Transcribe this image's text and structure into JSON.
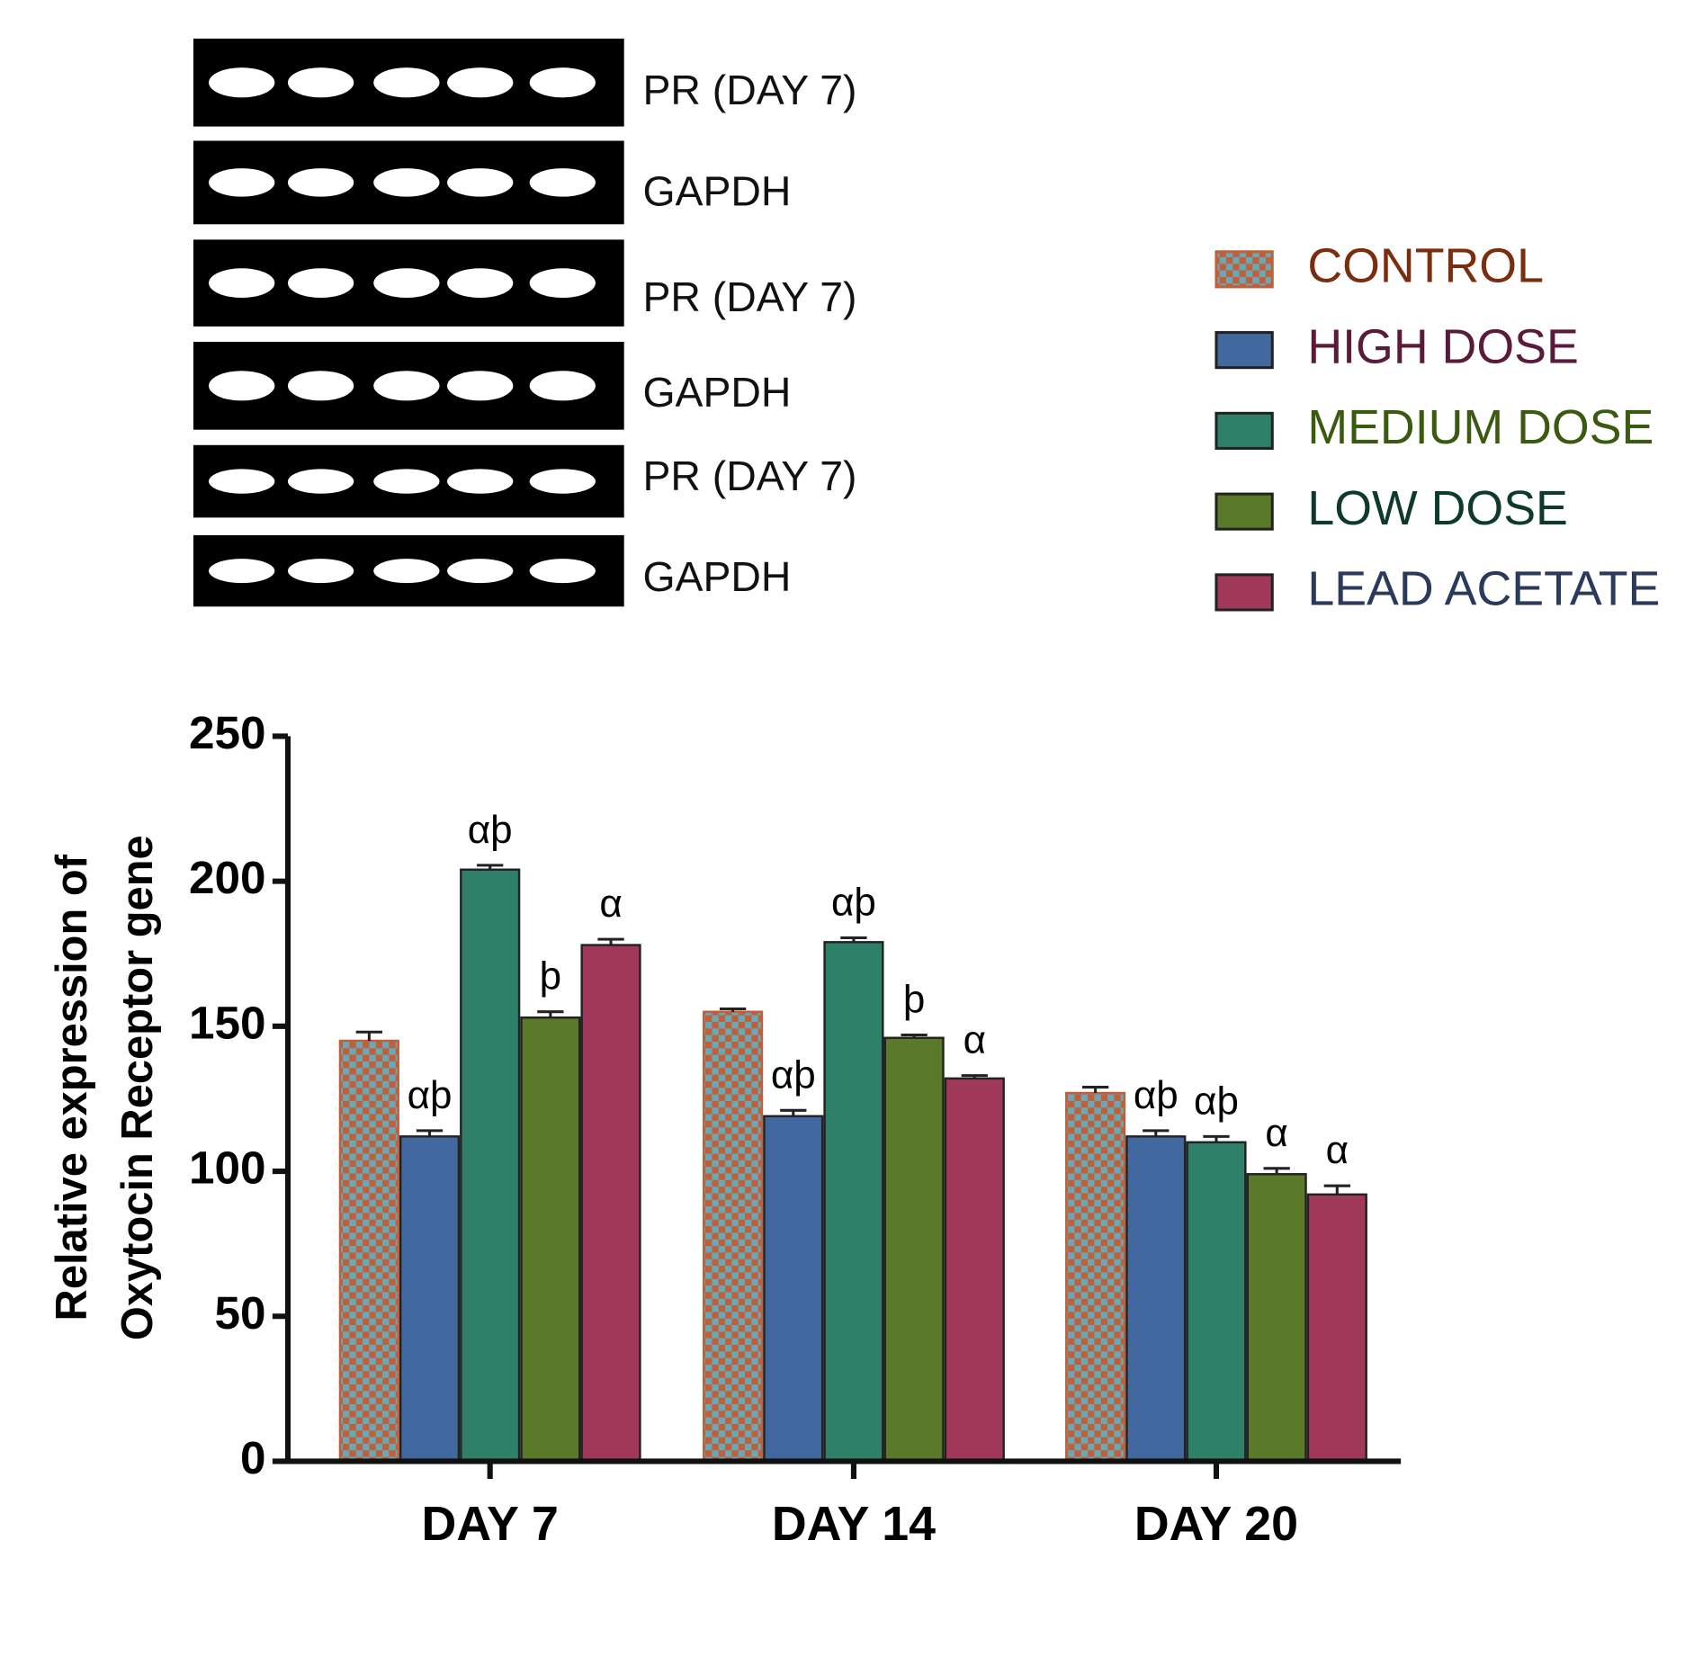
{
  "blots": [
    {
      "label": "PR  (DAY 7)"
    },
    {
      "label": "GAPDH"
    },
    {
      "label": "PR  (DAY 7)"
    },
    {
      "label": "GAPDH"
    },
    {
      "label": "PR  (DAY 7)"
    },
    {
      "label": "GAPDH"
    }
  ],
  "chart_data": {
    "type": "bar",
    "y_label": [
      "Relative expression of",
      "Oxytocin Receptor gene"
    ],
    "categories": [
      "DAY 7",
      "DAY 14",
      "DAY 20"
    ],
    "ylim": [
      0,
      250
    ],
    "yticks": [
      0,
      50,
      100,
      150,
      200,
      250
    ],
    "legend": "right",
    "series": [
      {
        "name": "CONTROL",
        "color": "#c0603a",
        "pattern": "checkered",
        "pattern_color": "#6aa8b8",
        "label_color": "#7a2e0e",
        "values": [
          145,
          155,
          127
        ],
        "errors": [
          3,
          1,
          2
        ],
        "labels": [
          null,
          null,
          null
        ]
      },
      {
        "name": "HIGH DOSE",
        "color": "#4169a0",
        "label_color": "#5a1a3a",
        "values": [
          112,
          119,
          112
        ],
        "errors": [
          2,
          2,
          2
        ],
        "labels": [
          "αþ",
          "αþ",
          "αþ"
        ]
      },
      {
        "name": "MEDIUM DOSE",
        "color": "#2e8069",
        "label_color": "#3a5a10",
        "values": [
          204,
          179,
          110
        ],
        "errors": [
          1.5,
          1.5,
          2
        ],
        "labels": [
          "αþ",
          "αþ",
          "αþ"
        ]
      },
      {
        "name": "LOW DOSE",
        "color": "#5a7a2a",
        "label_color": "#0e3a2e",
        "values": [
          153,
          146,
          99
        ],
        "errors": [
          2,
          1,
          2
        ],
        "labels": [
          "þ",
          "þ",
          "α"
        ]
      },
      {
        "name": "LEAD ACETATE",
        "color": "#a0385a",
        "label_color": "#2a3a5a",
        "values": [
          178,
          132,
          92
        ],
        "errors": [
          2,
          1,
          3
        ],
        "labels": [
          "α",
          "α",
          "α"
        ]
      }
    ]
  }
}
